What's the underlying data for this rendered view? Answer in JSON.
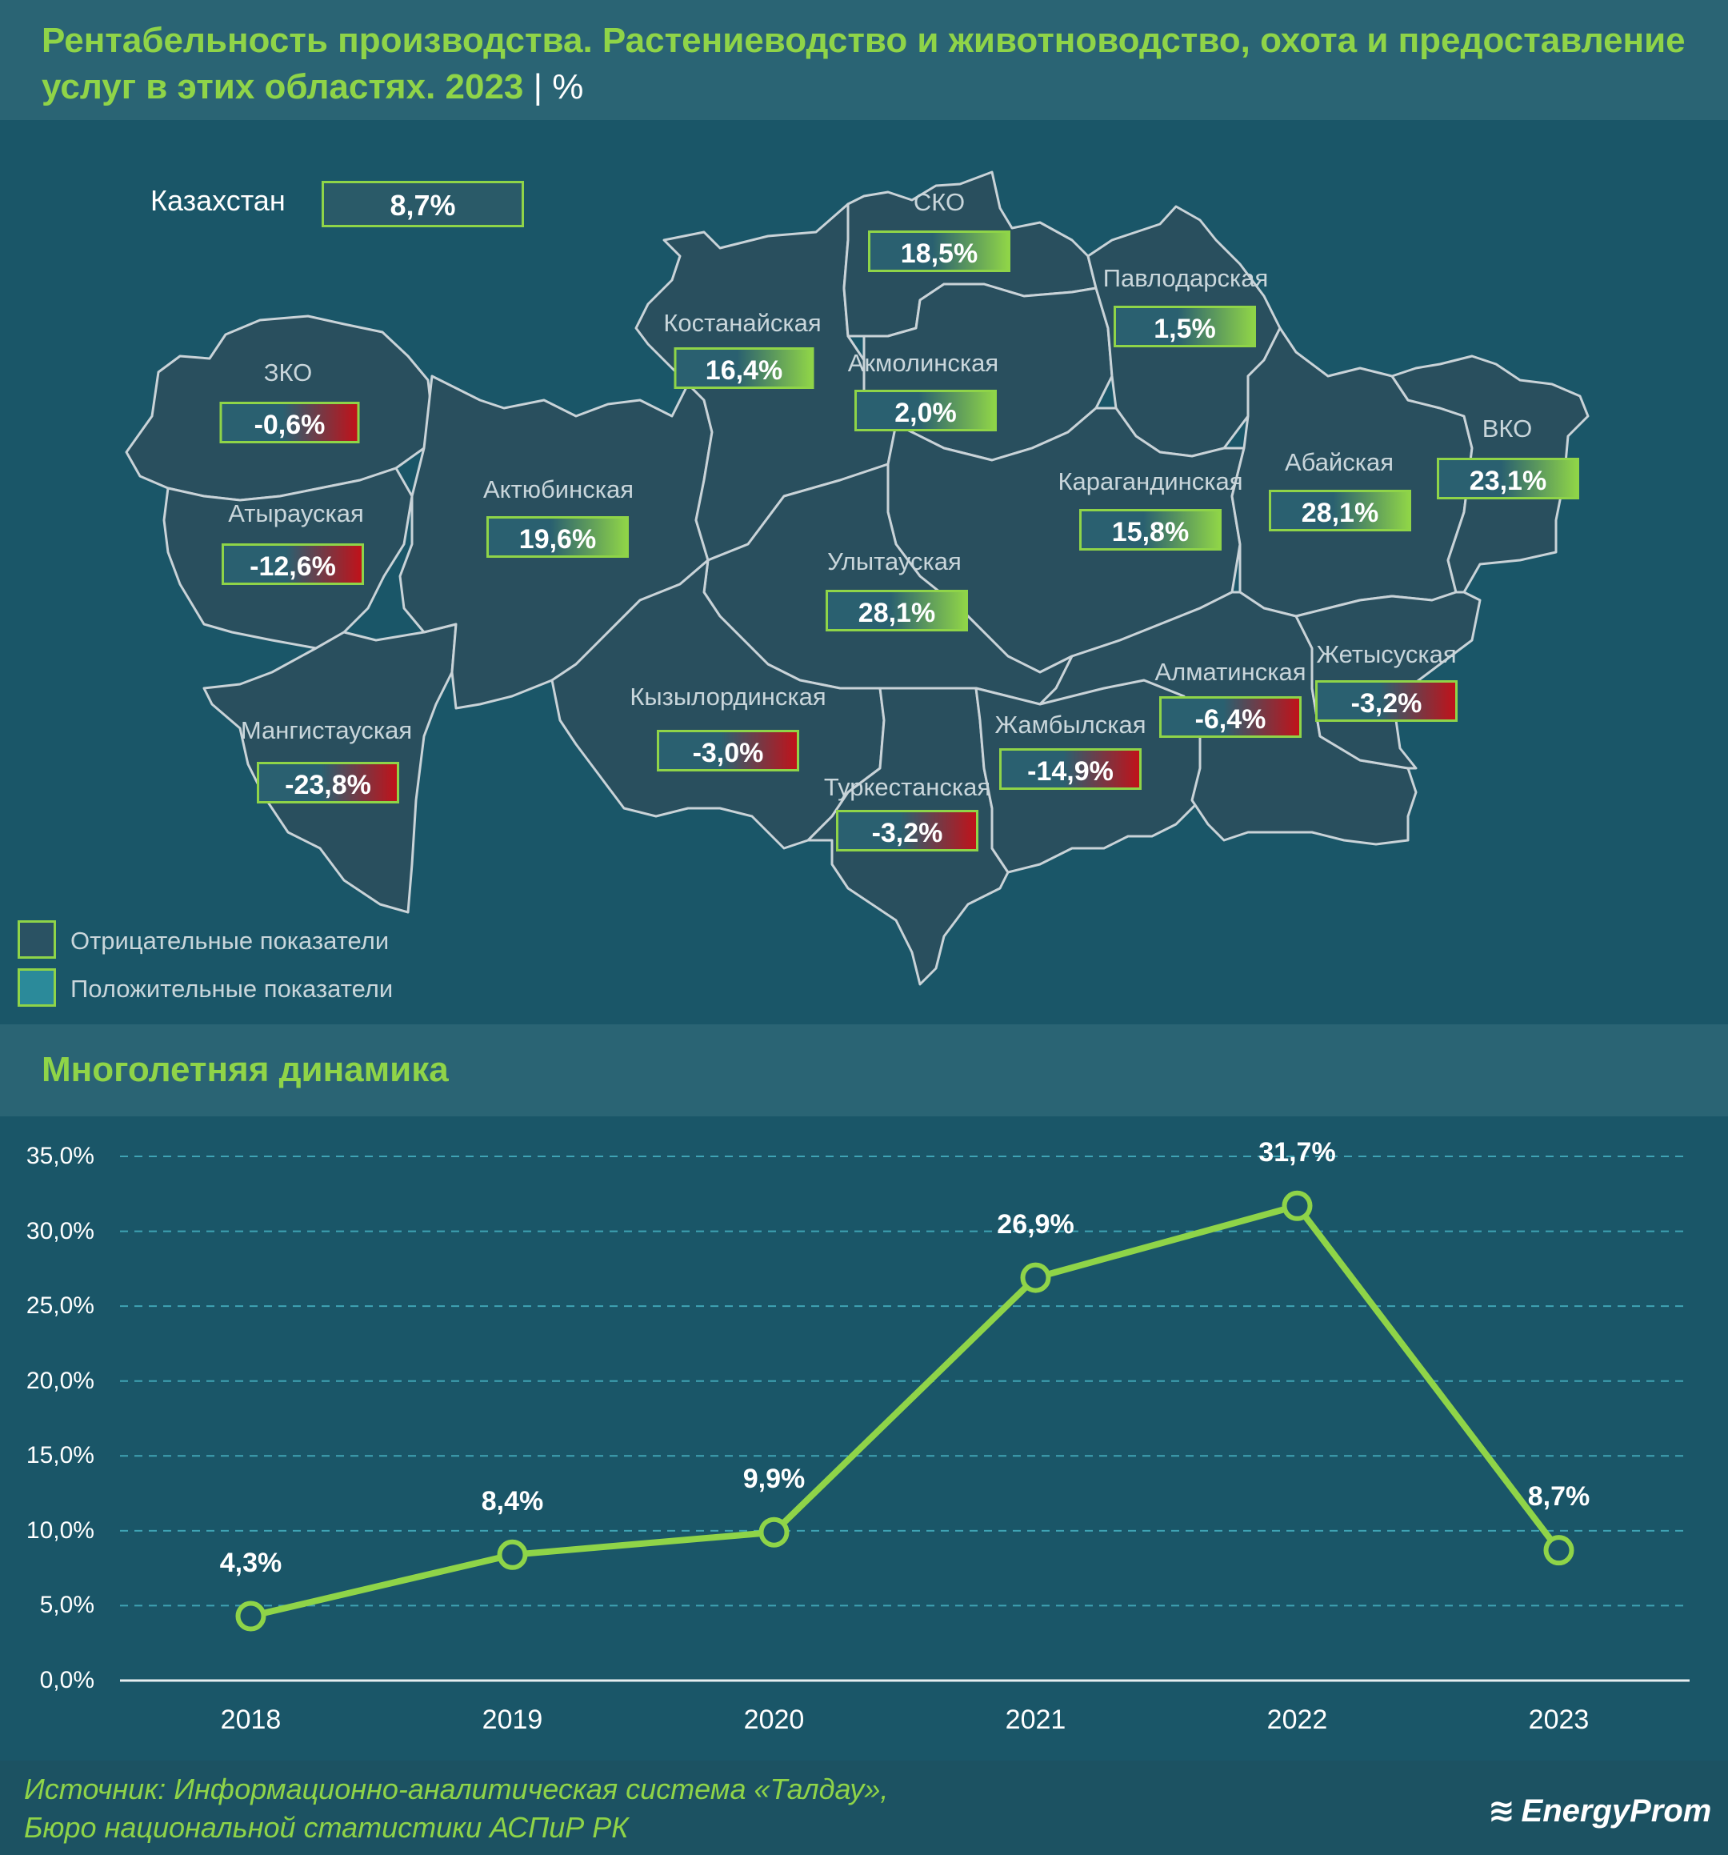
{
  "header": {
    "title": "Рентабельность производства. Растениеводство и животноводство, охота и предоставление услуг в этих областях. 2023",
    "unit": "| %"
  },
  "map": {
    "kazakhstan": {
      "label": "Казахстан",
      "value": "8,7%"
    },
    "regions": [
      {
        "id": "zko",
        "name": "ЗКО",
        "value": "-0,6%",
        "sign": "neg"
      },
      {
        "id": "atyrau",
        "name": "Атырауская",
        "value": "-12,6%",
        "sign": "neg"
      },
      {
        "id": "mangystau",
        "name": "Мангистауская",
        "value": "-23,8%",
        "sign": "neg"
      },
      {
        "id": "aktobe",
        "name": "Актюбинская",
        "value": "19,6%",
        "sign": "pos"
      },
      {
        "id": "kostanay",
        "name": "Костанайская",
        "value": "16,4%",
        "sign": "pos"
      },
      {
        "id": "sko",
        "name": "СКО",
        "value": "18,5%",
        "sign": "pos"
      },
      {
        "id": "akmola",
        "name": "Акмолинская",
        "value": "2,0%",
        "sign": "pos"
      },
      {
        "id": "pavlodar",
        "name": "Павлодарская",
        "value": "1,5%",
        "sign": "pos"
      },
      {
        "id": "karaganda",
        "name": "Карагандинская",
        "value": "15,8%",
        "sign": "pos"
      },
      {
        "id": "abay",
        "name": "Абайская",
        "value": "28,1%",
        "sign": "pos"
      },
      {
        "id": "vko",
        "name": "ВКО",
        "value": "23,1%",
        "sign": "pos"
      },
      {
        "id": "ulytau",
        "name": "Улытауская",
        "value": "28,1%",
        "sign": "pos"
      },
      {
        "id": "kyzylorda",
        "name": "Кызылординская",
        "value": "-3,0%",
        "sign": "neg"
      },
      {
        "id": "turkestan",
        "name": "Туркестанская",
        "value": "-3,2%",
        "sign": "neg"
      },
      {
        "id": "zhambyl",
        "name": "Жамбылская",
        "value": "-14,9%",
        "sign": "neg"
      },
      {
        "id": "almaty",
        "name": "Алматинская",
        "value": "-6,4%",
        "sign": "neg"
      },
      {
        "id": "zhetysu",
        "name": "Жетысуская",
        "value": "-3,2%",
        "sign": "neg"
      }
    ],
    "legend": [
      {
        "label": "Отрицательные показатели",
        "color": "#2a5263"
      },
      {
        "label": "Положительные показатели",
        "color": "#2b8a9a"
      }
    ]
  },
  "dynamics": {
    "title": "Многолетняя динамика"
  },
  "chart_data": {
    "type": "line",
    "title": "Многолетняя динамика",
    "x": [
      "2018",
      "2019",
      "2020",
      "2021",
      "2022",
      "2023"
    ],
    "series": [
      {
        "values": [
          4.3,
          8.4,
          9.9,
          26.9,
          31.7,
          8.7
        ],
        "labels": [
          "4,3%",
          "8,4%",
          "9,9%",
          "26,9%",
          "31,7%",
          "8,7%"
        ]
      }
    ],
    "ylim": [
      0,
      35
    ],
    "yticks": [
      "0,0%",
      "5,0%",
      "10,0%",
      "15,0%",
      "20,0%",
      "25,0%",
      "30,0%",
      "35,0%"
    ],
    "grid": true,
    "line_color": "#8fd448"
  },
  "footer": {
    "source_line1": "Источник: Информационно-аналитическая система «Талдау»,",
    "source_line2": "Бюро национальной статистики АСПиР РК",
    "logo_text": "EnergyProm",
    "logo_icon": "energyprom-logo-icon"
  }
}
